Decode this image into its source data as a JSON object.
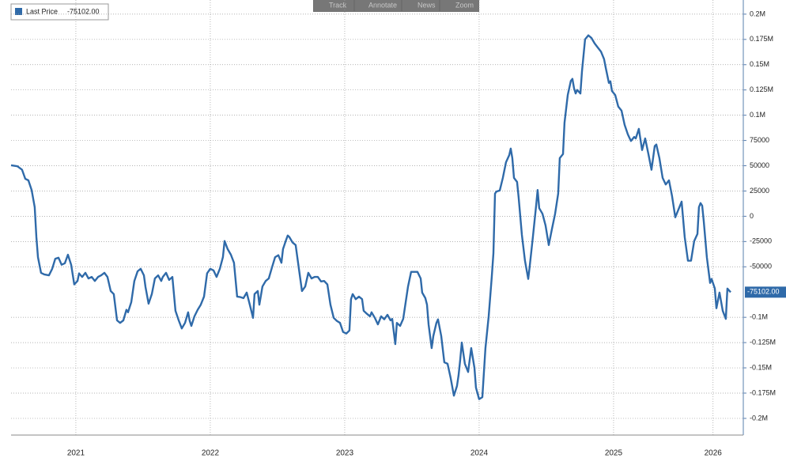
{
  "toolbar": [
    "Track",
    "Annotate",
    "News",
    "Zoom"
  ],
  "chart_data": {
    "type": "line",
    "legend_value": "-75102.00",
    "x": [
      2021.018,
      2021.065,
      2021.1,
      2021.124,
      2021.147,
      2021.171,
      2021.194,
      2021.206,
      2021.218,
      2021.241,
      2021.265,
      2021.3,
      2021.324,
      2021.347,
      2021.371,
      2021.394,
      2021.418,
      2021.441,
      2021.465,
      2021.488,
      2021.512,
      2021.524,
      2021.547,
      2021.571,
      2021.594,
      2021.618,
      2021.641,
      2021.665,
      2021.688,
      2021.712,
      2021.735,
      2021.759,
      2021.782,
      2021.806,
      2021.829,
      2021.853,
      2021.876,
      2021.888,
      2021.912,
      2021.935,
      2021.959,
      2021.982,
      2022.006,
      2022.018,
      2022.041,
      2022.065,
      2022.088,
      2022.112,
      2022.135,
      2022.147,
      2022.171,
      2022.194,
      2022.218,
      2022.241,
      2022.265,
      2022.288,
      2022.312,
      2022.335,
      2022.347,
      2022.359,
      2022.382,
      2022.406,
      2022.429,
      2022.453,
      2022.476,
      2022.5,
      2022.524,
      2022.547,
      2022.571,
      2022.594,
      2022.606,
      2022.629,
      2022.653,
      2022.676,
      2022.7,
      2022.724,
      2022.747,
      2022.771,
      2022.794,
      2022.818,
      2022.829,
      2022.853,
      2022.865,
      2022.888,
      2022.912,
      2022.935,
      2022.959,
      2022.982,
      2023.006,
      2023.029,
      2023.041,
      2023.065,
      2023.076,
      2023.088,
      2023.112,
      2023.135,
      2023.159,
      2023.182,
      2023.206,
      2023.229,
      2023.253,
      2023.276,
      2023.3,
      2023.324,
      2023.347,
      2023.371,
      2023.394,
      2023.418,
      2023.441,
      2023.465,
      2023.488,
      2023.512,
      2023.535,
      2023.547,
      2023.559,
      2023.582,
      2023.606,
      2023.629,
      2023.641,
      2023.665,
      2023.688,
      2023.7,
      2023.724,
      2023.747,
      2023.771,
      2023.794,
      2023.818,
      2023.841,
      2023.853,
      2023.876,
      2023.888,
      2023.912,
      2023.935,
      2023.947,
      2023.971,
      2023.994,
      2024.018,
      2024.041,
      2024.065,
      2024.076,
      2024.1,
      2024.112,
      2024.124,
      2024.147,
      2024.159,
      2024.182,
      2024.194,
      2024.218,
      2024.241,
      2024.265,
      2024.288,
      2024.312,
      2024.335,
      2024.347,
      2024.359,
      2024.371,
      2024.394,
      2024.418,
      2024.441,
      2024.465,
      2024.476,
      2024.5,
      2024.524,
      2024.547,
      2024.571,
      2024.594,
      2024.606,
      2024.618,
      2024.629,
      2024.653,
      2024.676,
      2024.7,
      2024.724,
      2024.735,
      2024.747,
      2024.759,
      2024.782,
      2024.794,
      2024.818,
      2024.841,
      2024.865,
      2024.876,
      2024.9,
      2024.924,
      2024.935,
      2024.947,
      2024.971,
      2024.994,
      2025.018,
      2025.041,
      2025.065,
      2025.088,
      2025.1,
      2025.124,
      2025.135,
      2025.159,
      2025.182,
      2025.194,
      2025.206,
      2025.218,
      2025.229,
      2025.253,
      2025.265,
      2025.288,
      2025.312,
      2025.335,
      2025.359,
      2025.382,
      2025.406,
      2025.429,
      2025.441,
      2025.465,
      2025.476,
      2025.488,
      2025.512,
      2025.535,
      2025.559,
      2025.582,
      2025.606,
      2025.629,
      2025.653,
      2025.665,
      2025.688,
      2025.712,
      2025.735,
      2025.759,
      2025.782,
      2025.806,
      2025.818,
      2025.841,
      2025.865,
      2025.888,
      2025.912,
      2025.935,
      2025.959,
      2025.982,
      2026.006,
      2026.029,
      2026.053,
      2026.076,
      2026.1,
      2026.124,
      2026.135,
      2026.147,
      2026.159,
      2026.171,
      2026.194,
      2026.218,
      2026.229,
      2026.253,
      2026.265,
      2026.288,
      2026.312,
      2026.335,
      2026.347,
      2026.371
    ],
    "series": [
      {
        "name": "Last Price",
        "color": "#2f6aa9",
        "values": [
          50500,
          49500,
          46000,
          37000,
          35500,
          26000,
          9000,
          -20500,
          -40500,
          -56000,
          -57500,
          -58500,
          -52000,
          -42000,
          -41000,
          -48000,
          -46500,
          -38000,
          -48000,
          -67500,
          -64000,
          -56500,
          -60000,
          -56000,
          -61500,
          -60000,
          -64000,
          -60000,
          -58500,
          -56000,
          -60000,
          -74000,
          -77000,
          -103000,
          -105500,
          -103000,
          -92500,
          -95000,
          -85000,
          -64000,
          -54500,
          -52000,
          -58500,
          -70000,
          -86500,
          -77000,
          -61500,
          -58500,
          -64000,
          -60000,
          -56000,
          -63000,
          -60000,
          -93500,
          -103000,
          -111000,
          -105500,
          -95000,
          -103500,
          -108500,
          -99000,
          -92500,
          -87500,
          -79500,
          -56500,
          -52000,
          -53500,
          -60000,
          -52000,
          -40500,
          -24500,
          -32500,
          -38000,
          -46000,
          -79500,
          -80000,
          -81000,
          -75500,
          -87500,
          -100500,
          -77000,
          -74000,
          -87500,
          -69500,
          -64000,
          -61500,
          -50500,
          -40500,
          -38500,
          -46000,
          -32500,
          -23000,
          -19000,
          -20500,
          -26000,
          -28500,
          -52000,
          -74000,
          -69500,
          -56000,
          -61500,
          -60000,
          -60000,
          -64500,
          -64000,
          -67500,
          -87500,
          -100500,
          -103500,
          -105500,
          -114500,
          -116000,
          -113000,
          -82000,
          -77000,
          -82000,
          -79500,
          -82000,
          -93500,
          -96500,
          -99000,
          -95000,
          -100500,
          -107000,
          -99000,
          -102000,
          -97500,
          -103000,
          -101500,
          -126500,
          -105500,
          -108500,
          -101500,
          -91000,
          -69500,
          -55000,
          -55000,
          -55000,
          -61500,
          -75500,
          -81000,
          -87500,
          -107000,
          -130500,
          -118500,
          -105500,
          -102000,
          -118500,
          -144500,
          -146000,
          -160000,
          -177500,
          -168000,
          -157500,
          -142000,
          -125000,
          -146000,
          -154000,
          -130500,
          -150000,
          -169500,
          -181000,
          -179000,
          -130500,
          -99000,
          -60000,
          -36500,
          22500,
          24500,
          25500,
          38000,
          53500,
          60500,
          67000,
          57500,
          38000,
          34000,
          18500,
          -18500,
          -44000,
          -62000,
          -49500,
          -20500,
          10500,
          26000,
          8000,
          2500,
          -9000,
          -28500,
          -13000,
          2500,
          22500,
          57500,
          61500,
          92500,
          120000,
          134000,
          136000,
          126500,
          121500,
          125000,
          121500,
          143500,
          175000,
          179000,
          176500,
          171000,
          167000,
          163000,
          155500,
          147500,
          132000,
          133500,
          124000,
          120000,
          108500,
          104500,
          90500,
          81000,
          74500,
          78500,
          77000,
          86500,
          65500,
          77000,
          61500,
          46000,
          69500,
          71000,
          57500,
          38000,
          31500,
          35500,
          20000,
          -1000,
          6500,
          14500,
          -20500,
          -44000,
          -44000,
          -24500,
          -17500,
          9000,
          13000,
          10500,
          -5000,
          -40500,
          -66000,
          -62000,
          -71500,
          -91000,
          -75500,
          -93500,
          -101500,
          -71500,
          -75102
        ]
      }
    ],
    "xlim": [
      2021.018,
      2026.465
    ],
    "ylim": [
      -216500,
      214000
    ],
    "xticks": [
      {
        "value": 2021.5,
        "label": "2021"
      },
      {
        "value": 2022.5,
        "label": "2022"
      },
      {
        "value": 2023.5,
        "label": "2023"
      },
      {
        "value": 2024.5,
        "label": "2024"
      },
      {
        "value": 2025.5,
        "label": "2025"
      },
      {
        "value": 2026.24,
        "label": "2026"
      }
    ],
    "yticks": [
      {
        "value": 200000,
        "label": "0.2M"
      },
      {
        "value": 175000,
        "label": "0.175M"
      },
      {
        "value": 150000,
        "label": "0.15M"
      },
      {
        "value": 125000,
        "label": "0.125M"
      },
      {
        "value": 100000,
        "label": "0.1M"
      },
      75000,
      50000,
      25000,
      0,
      -25000,
      -50000,
      {
        "value": -100000,
        "label": "-0.1M"
      },
      {
        "value": -125000,
        "label": "-0.125M"
      },
      {
        "value": -150000,
        "label": "-0.15M"
      },
      {
        "value": -175000,
        "label": "-0.175M"
      },
      {
        "value": -200000,
        "label": "-0.2M"
      }
    ],
    "grid": true
  }
}
